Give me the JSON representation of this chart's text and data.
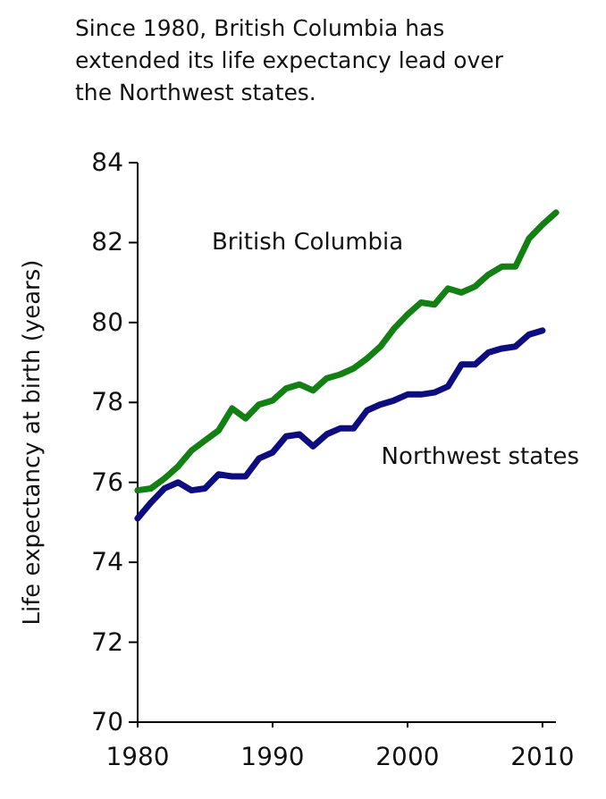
{
  "chart_data": {
    "type": "line",
    "title": "Since 1980, British Columbia has extended its life expectancy lead over the Northwest states.",
    "ylabel": "Life expectancy at birth (years)",
    "x": [
      1980,
      1981,
      1982,
      1983,
      1984,
      1985,
      1986,
      1987,
      1988,
      1989,
      1990,
      1991,
      1992,
      1993,
      1994,
      1995,
      1996,
      1997,
      1998,
      1999,
      2000,
      2001,
      2002,
      2003,
      2004,
      2005,
      2006,
      2007,
      2008,
      2009,
      2010,
      2011
    ],
    "series": [
      {
        "name": "British Columbia",
        "color": "#138013",
        "values": [
          75.8,
          75.85,
          76.1,
          76.4,
          76.8,
          77.05,
          77.3,
          77.85,
          77.6,
          77.95,
          78.05,
          78.35,
          78.45,
          78.3,
          78.6,
          78.7,
          78.85,
          79.1,
          79.4,
          79.85,
          80.2,
          80.5,
          80.45,
          80.85,
          80.75,
          80.9,
          81.2,
          81.4,
          81.4,
          82.1,
          82.45,
          82.75
        ]
      },
      {
        "name": "Northwest states",
        "color": "#0d0d80",
        "values": [
          75.1,
          75.5,
          75.85,
          76.0,
          75.8,
          75.85,
          76.2,
          76.15,
          76.15,
          76.6,
          76.75,
          77.15,
          77.2,
          76.9,
          77.2,
          77.35,
          77.35,
          77.8,
          77.95,
          78.05,
          78.2,
          78.2,
          78.25,
          78.4,
          78.95,
          78.95,
          79.25,
          79.35,
          79.4,
          79.7,
          79.8,
          null
        ]
      }
    ],
    "xlim": [
      1980,
      2011
    ],
    "xticks": [
      1980,
      1990,
      2000,
      2010
    ],
    "ylim": [
      70,
      84
    ],
    "yticks": [
      70,
      72,
      74,
      76,
      78,
      80,
      82,
      84
    ],
    "line_style": "solid"
  }
}
